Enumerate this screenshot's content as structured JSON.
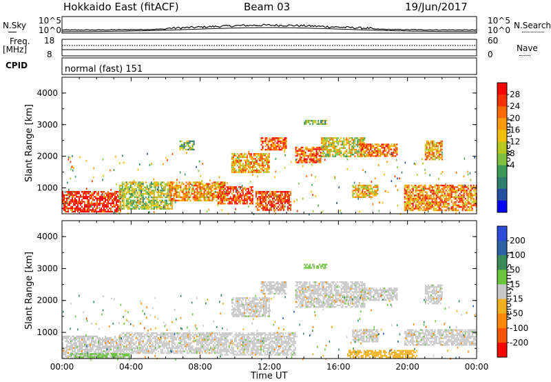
{
  "header": {
    "title": "Hokkaido East (fitACF)",
    "beam": "Beam 03",
    "date": "19/Jun/2017"
  },
  "top_panels": {
    "nsky_label": "N.Sky",
    "nsky_ticks": [
      "10^5",
      "10^0"
    ],
    "nsearch_label": "N.Search",
    "nsearch_ticks": [
      "10^5",
      "10^0"
    ],
    "freq_label": "Freq.",
    "freq_unit": "[MHz]",
    "freq_ticks": [
      "18",
      "8"
    ],
    "nave_label": "Nave",
    "nave_ticks": [
      "60",
      "0"
    ],
    "cpid_label": "CPID",
    "cpid_text": "normal (fast) 151"
  },
  "chart_data": [
    {
      "type": "heatmap",
      "name": "power-panel",
      "ylabel": "Slant Range [km]",
      "xlabel": "",
      "xlim": [
        "00:00",
        "24:00"
      ],
      "ylim": [
        180,
        4500
      ],
      "y_ticks": [
        "1000",
        "2000",
        "3000",
        "4000"
      ],
      "colorbar": {
        "label": "Power [dB]",
        "ticks": [
          "28",
          "24",
          "20",
          "16",
          "12",
          "8",
          "4"
        ],
        "colors": [
          "#ff0000",
          "#ff3000",
          "#ff6a00",
          "#ff9b00",
          "#f0c000",
          "#b8c820",
          "#7fc040",
          "#3c9a58",
          "#2e7f70",
          "#244fa0",
          "#0000ff"
        ],
        "range": [
          0,
          30
        ]
      },
      "regions": [
        {
          "t0": 0.0,
          "t1": 3.4,
          "r0": 220,
          "r1": 900,
          "level": 28
        },
        {
          "t0": 3.3,
          "t1": 6.4,
          "r0": 350,
          "r1": 1200,
          "level": 14
        },
        {
          "t0": 6.2,
          "t1": 9.4,
          "r0": 600,
          "r1": 1200,
          "level": 20
        },
        {
          "t0": 9.0,
          "t1": 11.0,
          "r0": 500,
          "r1": 1050,
          "level": 26
        },
        {
          "t0": 11.2,
          "t1": 13.2,
          "r0": 300,
          "r1": 900,
          "level": 26
        },
        {
          "t0": 9.8,
          "t1": 12.0,
          "r0": 1500,
          "r1": 2100,
          "level": 20
        },
        {
          "t0": 11.5,
          "t1": 13.0,
          "r0": 2200,
          "r1": 2600,
          "level": 24
        },
        {
          "t0": 13.5,
          "t1": 15.0,
          "r0": 1800,
          "r1": 2300,
          "level": 24
        },
        {
          "t0": 15.0,
          "t1": 17.5,
          "r0": 2000,
          "r1": 2600,
          "level": 16
        },
        {
          "t0": 17.2,
          "t1": 19.4,
          "r0": 2000,
          "r1": 2400,
          "level": 22
        },
        {
          "t0": 19.8,
          "t1": 24.0,
          "r0": 300,
          "r1": 1100,
          "level": 22
        },
        {
          "t0": 16.8,
          "t1": 18.3,
          "r0": 700,
          "r1": 1100,
          "level": 18
        },
        {
          "t0": 6.8,
          "t1": 7.6,
          "r0": 2200,
          "r1": 2500,
          "level": 12
        },
        {
          "t0": 14.0,
          "t1": 15.3,
          "r0": 3000,
          "r1": 3150,
          "level": 12
        },
        {
          "t0": 21.0,
          "t1": 22.0,
          "r0": 1900,
          "r1": 2500,
          "level": 20
        }
      ]
    },
    {
      "type": "heatmap",
      "name": "velocity-panel",
      "ylabel": "Slant Range [km]",
      "xlabel": "Time UT",
      "xlim": [
        "00:00",
        "24:00"
      ],
      "ylim": [
        180,
        4500
      ],
      "x_ticks": [
        "00:00",
        "04:00",
        "08:00",
        "12:00",
        "16:00",
        "20:00",
        "00:00"
      ],
      "y_ticks": [
        "1000",
        "2000",
        "3000",
        "4000"
      ],
      "colorbar": {
        "label": "Velocity [m s⁻¹]",
        "ticks": [
          "200",
          "100",
          "50",
          "15",
          "-15",
          "-50",
          "-100",
          "-200"
        ],
        "colors": [
          "#2b4bd8",
          "#2e62a6",
          "#3a8a5a",
          "#6cc43c",
          "#c8c8c8",
          "#f0b020",
          "#ff8a00",
          "#ff5500",
          "#ff0000"
        ],
        "range": [
          -250,
          250
        ]
      },
      "regions": [
        {
          "t0": 0.0,
          "t1": 3.4,
          "r0": 220,
          "r1": 900,
          "level": 0
        },
        {
          "t0": 0.5,
          "t1": 4.0,
          "r0": 200,
          "r1": 350,
          "level": 40
        },
        {
          "t0": 3.3,
          "t1": 9.0,
          "r0": 350,
          "r1": 1000,
          "level": 0
        },
        {
          "t0": 9.0,
          "t1": 13.5,
          "r0": 300,
          "r1": 1000,
          "level": 0
        },
        {
          "t0": 9.8,
          "t1": 12.0,
          "r0": 1500,
          "r1": 2100,
          "level": 0
        },
        {
          "t0": 11.5,
          "t1": 13.0,
          "r0": 2200,
          "r1": 2600,
          "level": 0
        },
        {
          "t0": 13.5,
          "t1": 17.5,
          "r0": 1800,
          "r1": 2600,
          "level": 0
        },
        {
          "t0": 17.2,
          "t1": 19.4,
          "r0": 2000,
          "r1": 2400,
          "level": 0
        },
        {
          "t0": 19.8,
          "t1": 24.0,
          "r0": 600,
          "r1": 1100,
          "level": 0
        },
        {
          "t0": 16.5,
          "t1": 20.5,
          "r0": 200,
          "r1": 450,
          "level": -60
        },
        {
          "t0": 14.0,
          "t1": 15.3,
          "r0": 3000,
          "r1": 3150,
          "level": 40
        },
        {
          "t0": 16.8,
          "t1": 18.3,
          "r0": 700,
          "r1": 1100,
          "level": 0
        },
        {
          "t0": 21.0,
          "t1": 22.0,
          "r0": 1900,
          "r1": 2500,
          "level": 0
        }
      ]
    }
  ]
}
